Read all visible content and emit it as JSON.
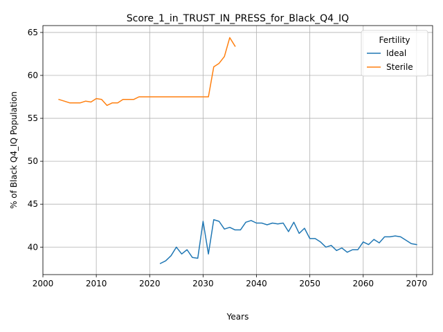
{
  "chart_data": {
    "type": "line",
    "title": "Score_1_in_TRUST_IN_PRESS_for_Black_Q4_IQ",
    "xlabel": "Years",
    "ylabel": "% of Black Q4_IQ Population",
    "xlim": [
      2000,
      2073
    ],
    "ylim": [
      36.8,
      65.8
    ],
    "xticks": [
      2000,
      2010,
      2020,
      2030,
      2040,
      2050,
      2060,
      2070
    ],
    "yticks": [
      40,
      45,
      50,
      55,
      60,
      65
    ],
    "grid": true,
    "legend": {
      "title": "Fertility",
      "placement": "top-right"
    },
    "series": [
      {
        "name": "Ideal",
        "color": "#1f77b4",
        "x": [
          2022,
          2023,
          2024,
          2025,
          2026,
          2027,
          2028,
          2029,
          2030,
          2031,
          2032,
          2033,
          2034,
          2035,
          2036,
          2037,
          2038,
          2039,
          2040,
          2041,
          2042,
          2043,
          2044,
          2045,
          2046,
          2047,
          2048,
          2049,
          2050,
          2051,
          2052,
          2053,
          2054,
          2055,
          2056,
          2057,
          2058,
          2059,
          2060,
          2061,
          2062,
          2063,
          2064,
          2065,
          2066,
          2067,
          2068,
          2069,
          2070
        ],
        "y": [
          38.1,
          38.4,
          39.0,
          40.0,
          39.2,
          39.7,
          38.8,
          38.7,
          43.0,
          39.2,
          43.2,
          43.0,
          42.1,
          42.3,
          42.0,
          42.0,
          42.9,
          43.1,
          42.8,
          42.8,
          42.6,
          42.8,
          42.7,
          42.8,
          41.8,
          42.9,
          41.6,
          42.2,
          41.0,
          41.0,
          40.6,
          40.0,
          40.2,
          39.6,
          39.9,
          39.4,
          39.7,
          39.7,
          40.6,
          40.3,
          40.9,
          40.5,
          41.2,
          41.2,
          41.3,
          41.2,
          40.8,
          40.4,
          40.3
        ]
      },
      {
        "name": "Sterile",
        "color": "#ff7f0e",
        "x": [
          2003,
          2004,
          2005,
          2006,
          2007,
          2008,
          2009,
          2010,
          2011,
          2012,
          2013,
          2014,
          2015,
          2016,
          2017,
          2018,
          2019,
          2020,
          2021,
          2022,
          2023,
          2024,
          2025,
          2026,
          2027,
          2028,
          2029,
          2030,
          2031,
          2032,
          2033,
          2034,
          2035,
          2036
        ],
        "y": [
          57.2,
          57.0,
          56.8,
          56.8,
          56.8,
          57.0,
          56.9,
          57.3,
          57.2,
          56.5,
          56.8,
          56.8,
          57.2,
          57.2,
          57.2,
          57.5,
          57.5,
          57.5,
          57.5,
          57.5,
          57.5,
          57.5,
          57.5,
          57.5,
          57.5,
          57.5,
          57.5,
          57.5,
          57.5,
          61.0,
          61.4,
          62.2,
          64.4,
          63.4
        ]
      }
    ]
  }
}
